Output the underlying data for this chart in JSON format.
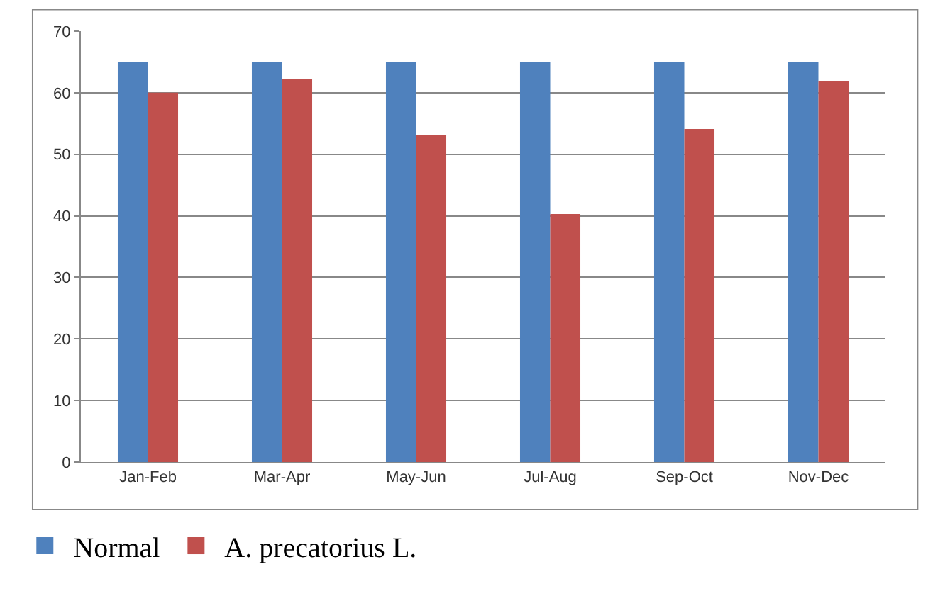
{
  "chart_data": {
    "type": "bar",
    "categories": [
      "Jan-Feb",
      "Mar-Apr",
      "May-Jun",
      "Jul-Aug",
      "Sep-Oct",
      "Nov-Dec"
    ],
    "series": [
      {
        "name": "Normal",
        "color": "#4f81bd",
        "values": [
          65,
          65,
          65,
          65,
          65,
          65
        ]
      },
      {
        "name": "A. precatorius L.",
        "color": "#c0504d",
        "values": [
          60,
          62.3,
          53.2,
          40.3,
          54.1,
          61.9
        ]
      }
    ],
    "ylim": [
      0,
      70
    ],
    "yticks": [
      0,
      10,
      20,
      30,
      40,
      50,
      60,
      70
    ],
    "grid": "y",
    "legend": "bottom left"
  }
}
